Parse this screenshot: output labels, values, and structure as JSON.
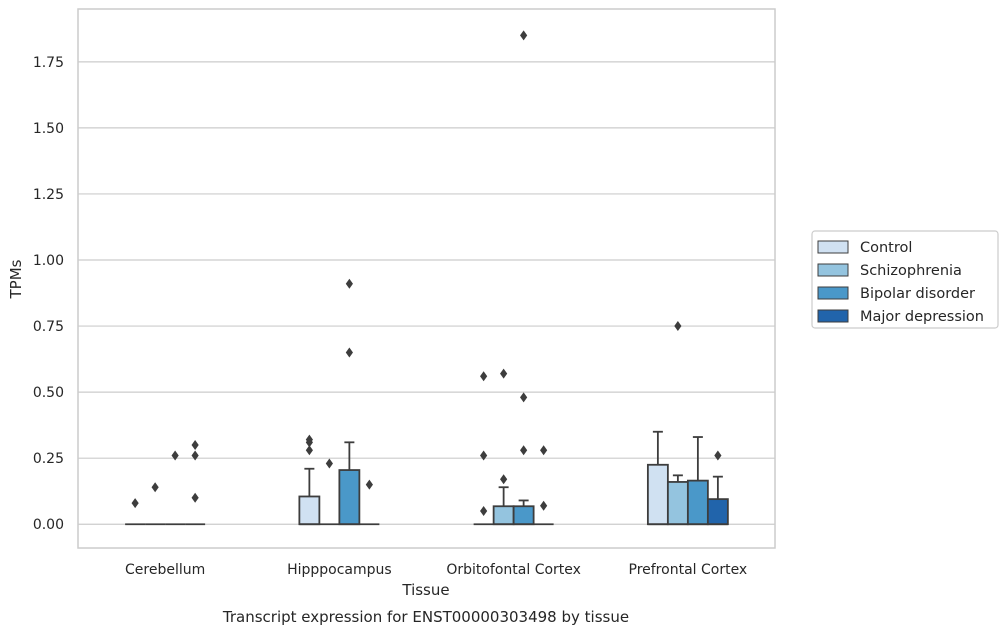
{
  "chart_data": {
    "type": "boxplot",
    "xlabel": "Tissue",
    "ylabel": "TPMs",
    "caption": "Transcript expression for ENST00000303498 by tissue",
    "ylim": [
      -0.09,
      1.95
    ],
    "yticks": [
      "0.00",
      "0.25",
      "0.50",
      "0.75",
      "1.00",
      "1.25",
      "1.50",
      "1.75"
    ],
    "grid": true,
    "legend_position": "right",
    "categories": [
      "Cerebellum",
      "Hipppocampus",
      "Orbitofontal Cortex",
      "Prefrontal Cortex"
    ],
    "series": [
      {
        "name": "Control",
        "color": "#d0e1f2",
        "boxes": [
          {
            "q1": 0,
            "median": 0,
            "q3": 0,
            "whisker_low": 0,
            "whisker_high": 0,
            "outliers": [
              0.08
            ]
          },
          {
            "q1": 0,
            "median": 0,
            "q3": 0.105,
            "whisker_low": 0,
            "whisker_high": 0.21,
            "outliers": [
              0.28,
              0.31,
              0.32
            ]
          },
          {
            "q1": 0,
            "median": 0,
            "q3": 0,
            "whisker_low": 0,
            "whisker_high": 0,
            "outliers": [
              0.05,
              0.26,
              0.56
            ]
          },
          {
            "q1": 0,
            "median": 0,
            "q3": 0.225,
            "whisker_low": 0,
            "whisker_high": 0.35,
            "outliers": []
          }
        ]
      },
      {
        "name": "Schizophrenia",
        "color": "#94c4df",
        "boxes": [
          {
            "q1": 0,
            "median": 0,
            "q3": 0,
            "whisker_low": 0,
            "whisker_high": 0,
            "outliers": [
              0.14
            ]
          },
          {
            "q1": 0,
            "median": 0,
            "q3": 0,
            "whisker_low": 0,
            "whisker_high": 0,
            "outliers": [
              0.23
            ]
          },
          {
            "q1": 0,
            "median": 0,
            "q3": 0.068,
            "whisker_low": 0,
            "whisker_high": 0.14,
            "outliers": [
              0.17,
              0.57
            ]
          },
          {
            "q1": 0,
            "median": 0,
            "q3": 0.16,
            "whisker_low": 0,
            "whisker_high": 0.185,
            "outliers": [
              0.75
            ]
          }
        ]
      },
      {
        "name": "Bipolar disorder",
        "color": "#4a98c9",
        "boxes": [
          {
            "q1": 0,
            "median": 0,
            "q3": 0,
            "whisker_low": 0,
            "whisker_high": 0,
            "outliers": [
              0.26
            ]
          },
          {
            "q1": 0,
            "median": 0,
            "q3": 0.205,
            "whisker_low": 0,
            "whisker_high": 0.31,
            "outliers": [
              0.65,
              0.91
            ]
          },
          {
            "q1": 0,
            "median": 0,
            "q3": 0.068,
            "whisker_low": 0,
            "whisker_high": 0.09,
            "outliers": [
              0.28,
              0.48,
              1.85
            ]
          },
          {
            "q1": 0,
            "median": 0,
            "q3": 0.165,
            "whisker_low": 0,
            "whisker_high": 0.33,
            "outliers": []
          }
        ]
      },
      {
        "name": "Major depression",
        "color": "#2164ab",
        "boxes": [
          {
            "q1": 0,
            "median": 0,
            "q3": 0,
            "whisker_low": 0,
            "whisker_high": 0,
            "outliers": [
              0.1,
              0.26,
              0.3
            ]
          },
          {
            "q1": 0,
            "median": 0,
            "q3": 0,
            "whisker_low": 0,
            "whisker_high": 0,
            "outliers": [
              0.15
            ]
          },
          {
            "q1": 0,
            "median": 0,
            "q3": 0,
            "whisker_low": 0,
            "whisker_high": 0,
            "outliers": [
              0.07,
              0.28
            ]
          },
          {
            "q1": 0,
            "median": 0,
            "q3": 0.095,
            "whisker_low": 0,
            "whisker_high": 0.18,
            "outliers": [
              0.26
            ]
          }
        ]
      }
    ]
  }
}
